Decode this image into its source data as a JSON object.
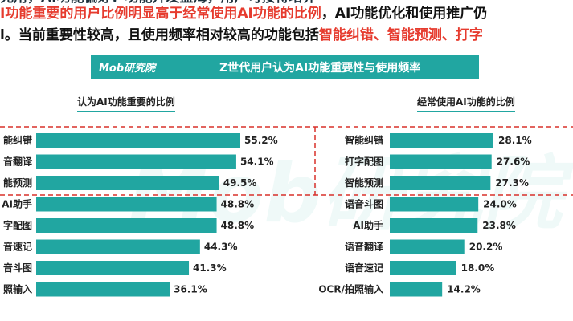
{
  "headline": {
    "line0": "兑用，AI功能偏好：功能开发蓝海，用户可接待培养",
    "line1_red": "I功能重要的用户比例明显高于经常使用AI功能的比例",
    "line1_dark": "，AI功能优化和使用推广仍",
    "line2_dark": "l。当前重要性较高，且使用频率相对较高的功能包括",
    "line2_red": "智能纠错、智能预测、打字"
  },
  "banner": {
    "logo": "Mob研究院",
    "title": "Z世代用户认为AI功能重要性与使用频率"
  },
  "watermark": "Mob研究院",
  "colors": {
    "bar": "#21a6a1",
    "accent_red": "#e63b2e",
    "divider": "#d9302a"
  },
  "chart_data": [
    {
      "type": "bar",
      "orientation": "horizontal",
      "title": "认为AI功能重要的比例",
      "categories": [
        "能纠错",
        "音翻译",
        "能预测",
        "AI助手",
        "字配图",
        "音速记",
        "音斗图",
        "照输入"
      ],
      "values": [
        55.2,
        54.1,
        49.5,
        48.8,
        48.8,
        44.3,
        41.3,
        36.1
      ],
      "labels": [
        "55.2%",
        "54.1%",
        "49.5%",
        "48.8%",
        "48.8%",
        "44.3%",
        "41.3%",
        "36.1%"
      ],
      "unit": "%"
    },
    {
      "type": "bar",
      "orientation": "horizontal",
      "title": "经常使用AI功能的比例",
      "categories": [
        "智能纠错",
        "打字配图",
        "智能预测",
        "语音斗图",
        "AI助手",
        "语音翻译",
        "语音速记",
        "OCR/拍照输入"
      ],
      "values": [
        28.1,
        27.6,
        27.3,
        24.0,
        23.8,
        20.2,
        18.0,
        14.2
      ],
      "labels": [
        "28.1%",
        "27.6%",
        "27.3%",
        "24.0%",
        "23.8%",
        "20.2%",
        "18.0%",
        "14.2%"
      ],
      "unit": "%"
    }
  ]
}
